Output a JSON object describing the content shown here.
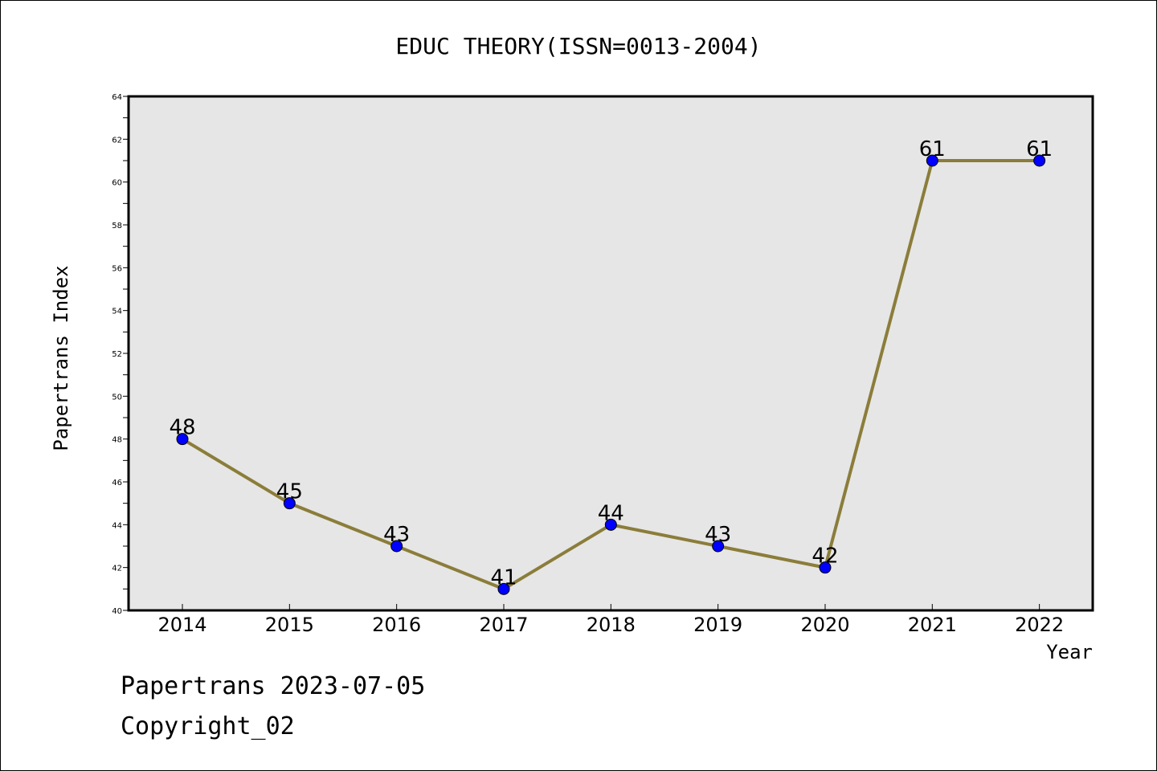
{
  "chart_data": {
    "type": "line",
    "title": "EDUC THEORY(ISSN=0013-2004)",
    "xlabel": "Year",
    "ylabel": "Papertrans Index",
    "categories": [
      "2014",
      "2015",
      "2016",
      "2017",
      "2018",
      "2019",
      "2020",
      "2021",
      "2022"
    ],
    "series": [
      {
        "values": [
          48,
          45,
          43,
          41,
          44,
          43,
          42,
          61,
          61
        ],
        "line_color": "#8B7D3A",
        "marker_color": "#0000FF"
      }
    ],
    "ylim": [
      40,
      64
    ],
    "yticks": [
      "40",
      "42",
      "44",
      "46",
      "48",
      "50",
      "52",
      "54",
      "56",
      "58",
      "60",
      "62",
      "64"
    ],
    "data_labels": [
      "48",
      "45",
      "43",
      "41",
      "44",
      "43",
      "42",
      "61",
      "61"
    ],
    "plot_background": "#E6E6E6",
    "grid": false,
    "legend": "none"
  },
  "footer": {
    "line1": "Papertrans 2023-07-05",
    "line2": "Copyright_02"
  }
}
